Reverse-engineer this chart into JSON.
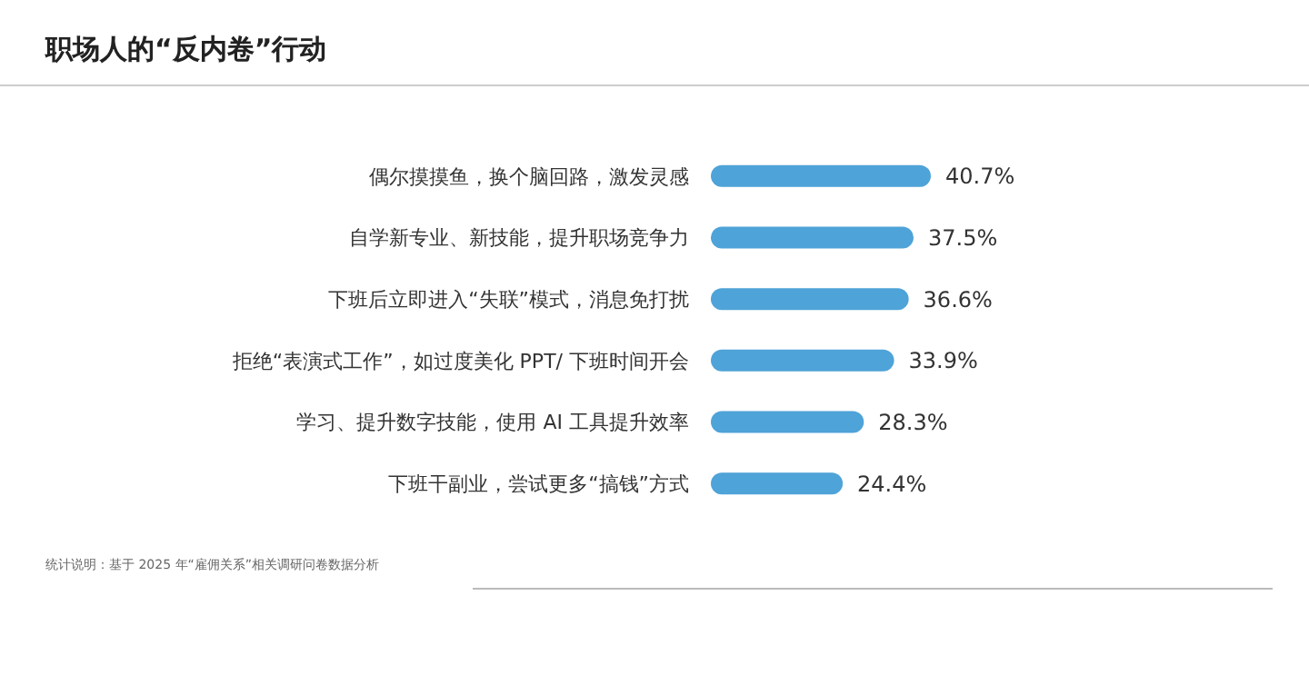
{
  "chart_data": {
    "type": "bar",
    "orientation": "horizontal",
    "title": "职场人的“反内卷”行动",
    "categories": [
      "偶尔摸摸鱼，换个脑回路，激发灵感",
      "自学新专业、新技能，提升职场竞争力",
      "下班后立即进入“失联”模式，消息免打扰",
      "拒绝“表演式工作”，如过度美化 PPT/ 下班时间开会",
      "学习、提升数字技能，使用 AI 工具提升效率",
      "下班干副业，尝试更多“搞钱”方式"
    ],
    "values": [
      40.7,
      37.5,
      36.6,
      33.9,
      28.3,
      24.4
    ],
    "value_labels": [
      "40.7%",
      "37.5%",
      "36.6%",
      "33.9%",
      "28.3%",
      "24.4%"
    ],
    "color": "#4ea3d8",
    "annotations": [
      "统计说明：基于 2025 年“雇佣关系”相关调研问卷数据分析"
    ]
  }
}
